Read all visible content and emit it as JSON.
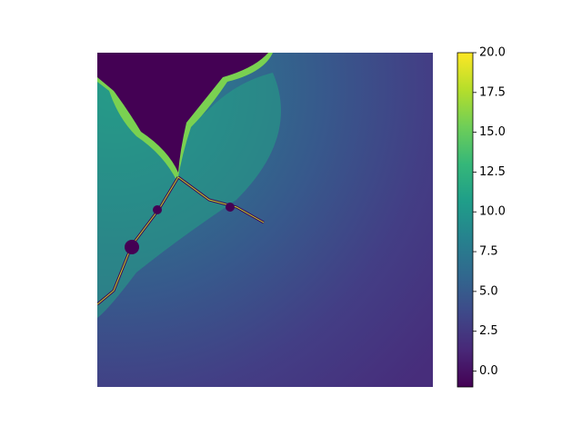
{
  "chart_data": {
    "type": "image",
    "colormap": "viridis",
    "clim": [
      -1,
      20
    ],
    "colorbar_ticks": [
      {
        "value": 0,
        "label": "0.0"
      },
      {
        "value": 2.5,
        "label": "2.5"
      },
      {
        "value": 5,
        "label": "5.0"
      },
      {
        "value": 7.5,
        "label": "7.5"
      },
      {
        "value": 10,
        "label": "10.0"
      },
      {
        "value": 12.5,
        "label": "12.5"
      },
      {
        "value": 15,
        "label": "15.0"
      },
      {
        "value": 17.5,
        "label": "17.5"
      },
      {
        "value": 20,
        "label": "20.0"
      }
    ]
  }
}
